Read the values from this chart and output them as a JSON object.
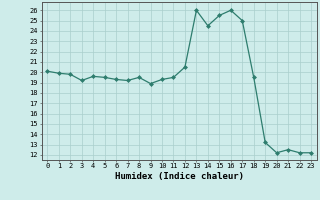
{
  "x": [
    0,
    1,
    2,
    3,
    4,
    5,
    6,
    7,
    8,
    9,
    10,
    11,
    12,
    13,
    14,
    15,
    16,
    17,
    18,
    19,
    20,
    21,
    22,
    23
  ],
  "y": [
    20.1,
    19.9,
    19.8,
    19.2,
    19.6,
    19.5,
    19.3,
    19.2,
    19.5,
    18.9,
    19.3,
    19.5,
    20.5,
    26.0,
    24.5,
    25.5,
    26.0,
    25.0,
    19.5,
    13.2,
    12.2,
    12.5,
    12.2,
    12.2
  ],
  "line_color": "#2e7d6e",
  "marker": "D",
  "marker_size": 2,
  "bg_color": "#ceecea",
  "grid_color": "#aacfcc",
  "xlabel": "Humidex (Indice chaleur)",
  "ylabel_ticks": [
    12,
    13,
    14,
    15,
    16,
    17,
    18,
    19,
    20,
    21,
    22,
    23,
    24,
    25,
    26
  ],
  "xlim": [
    -0.5,
    23.5
  ],
  "ylim": [
    11.5,
    26.8
  ]
}
